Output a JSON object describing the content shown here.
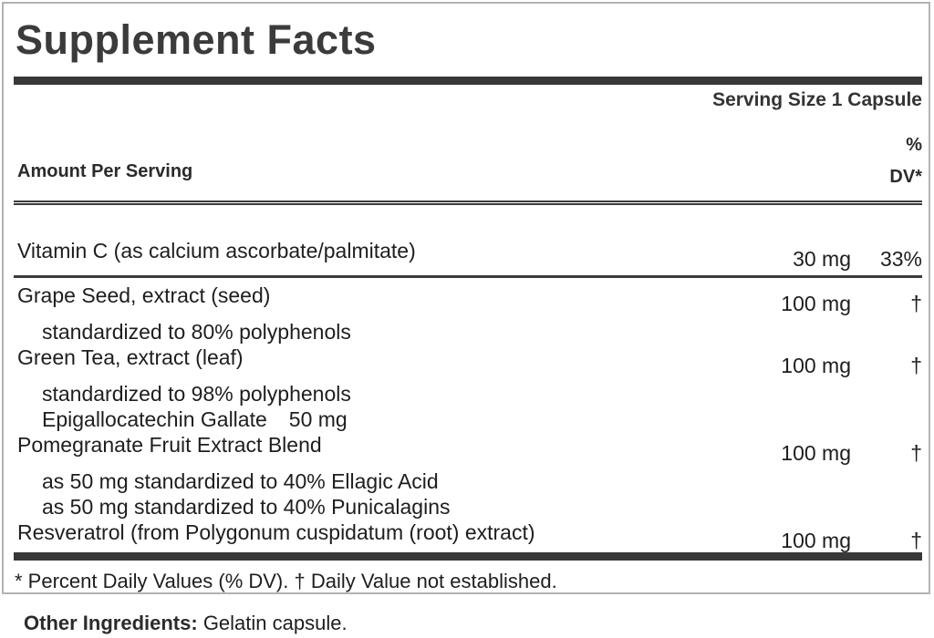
{
  "panel": {
    "title": "Supplement Facts",
    "serving_size": "Serving Size 1 Capsule",
    "footnote": "* Percent Daily Values (% DV). † Daily Value not established."
  },
  "table": {
    "header": {
      "amount_label": "Amount Per Serving",
      "dv_line1": "%",
      "dv_line2": "DV*"
    },
    "rows": [
      {
        "name": "Vitamin C (as calcium ascorbate/palmitate)",
        "amount": "30 mg",
        "dv": "33%",
        "subs": []
      },
      {
        "name": "Grape Seed, extract (seed)",
        "amount": "100 mg",
        "dv": "†",
        "subs": [
          {
            "text": "standardized to 80% polyphenols"
          }
        ]
      },
      {
        "name": "Green Tea, extract (leaf)",
        "amount": "100 mg",
        "dv": "†",
        "subs": [
          {
            "text": "standardized to 98% polyphenols"
          },
          {
            "text": "Epigallocatechin Gallate",
            "amount": "50 mg"
          }
        ]
      },
      {
        "name": "Pomegranate Fruit Extract Blend",
        "amount": "100 mg",
        "dv": "†",
        "subs": [
          {
            "text": "as 50 mg standardized to 40% Ellagic Acid"
          },
          {
            "text": "as 50 mg standardized to 40% Punicalagins"
          }
        ]
      },
      {
        "name": "Resveratrol (from Polygonum cuspidatum (root) extract)",
        "amount": "100 mg",
        "dv": "†",
        "subs": []
      }
    ]
  },
  "other_ingredients": {
    "label": "Other Ingredients:",
    "value": "Gelatin capsule."
  },
  "colors": {
    "rule": "#3a3a3a",
    "border": "#b3b3b3",
    "text": "#1e1e1e"
  }
}
